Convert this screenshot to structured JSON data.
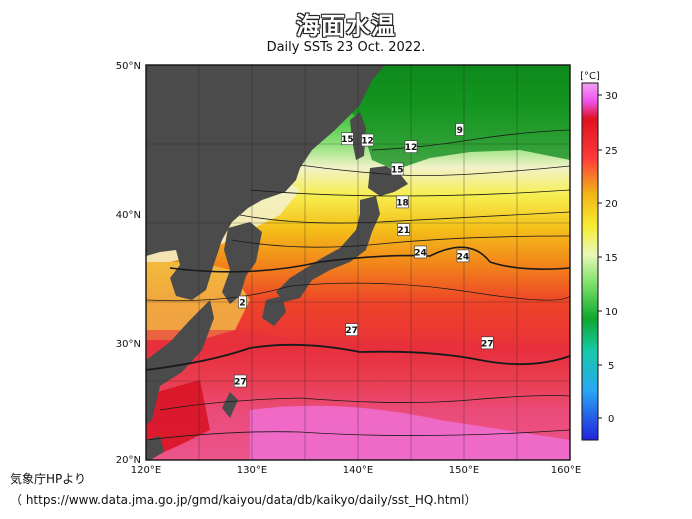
{
  "title": "海面水温",
  "subtitle": "Daily SSTs 23 Oct. 2022.",
  "map": {
    "lat_labels": [
      "50°N",
      "40°N",
      "30°N",
      "20°N"
    ],
    "lon_labels": [
      "120°E",
      "130°E",
      "140°E",
      "150°E",
      "160°E"
    ],
    "isotherm_labels": [
      {
        "text": "15",
        "lon": 139.0,
        "lat": 44.4
      },
      {
        "text": "12",
        "lon": 140.9,
        "lat": 44.3
      },
      {
        "text": "9",
        "lon": 149.6,
        "lat": 45.1
      },
      {
        "text": "12",
        "lon": 145.0,
        "lat": 43.8
      },
      {
        "text": "15",
        "lon": 143.7,
        "lat": 42.1
      },
      {
        "text": "18",
        "lon": 144.2,
        "lat": 39.6
      },
      {
        "text": "21",
        "lon": 144.3,
        "lat": 37.5
      },
      {
        "text": "24",
        "lon": 145.9,
        "lat": 35.8
      },
      {
        "text": "24",
        "lon": 149.9,
        "lat": 35.5
      },
      {
        "text": "2",
        "lon": 129.1,
        "lat": 32.0
      },
      {
        "text": "27",
        "lon": 139.4,
        "lat": 29.9
      },
      {
        "text": "27",
        "lon": 152.2,
        "lat": 28.9
      },
      {
        "text": "27",
        "lon": 128.9,
        "lat": 26.0
      }
    ]
  },
  "colorbar": {
    "unit": "[°C]",
    "ticks": [
      "30",
      "25",
      "20",
      "15",
      "10",
      "5",
      "0"
    ],
    "colors": {
      "warm": "#ff3a3a",
      "hot": "#ee55ee",
      "cold": "#2222dd",
      "land": "#4b4b4b"
    }
  },
  "credit": {
    "line1": "気象庁HPより",
    "line2": "（ https://www.data.jma.go.jp/gmd/kaiyou/data/db/kaikyo/daily/sst_HQ.html）"
  }
}
